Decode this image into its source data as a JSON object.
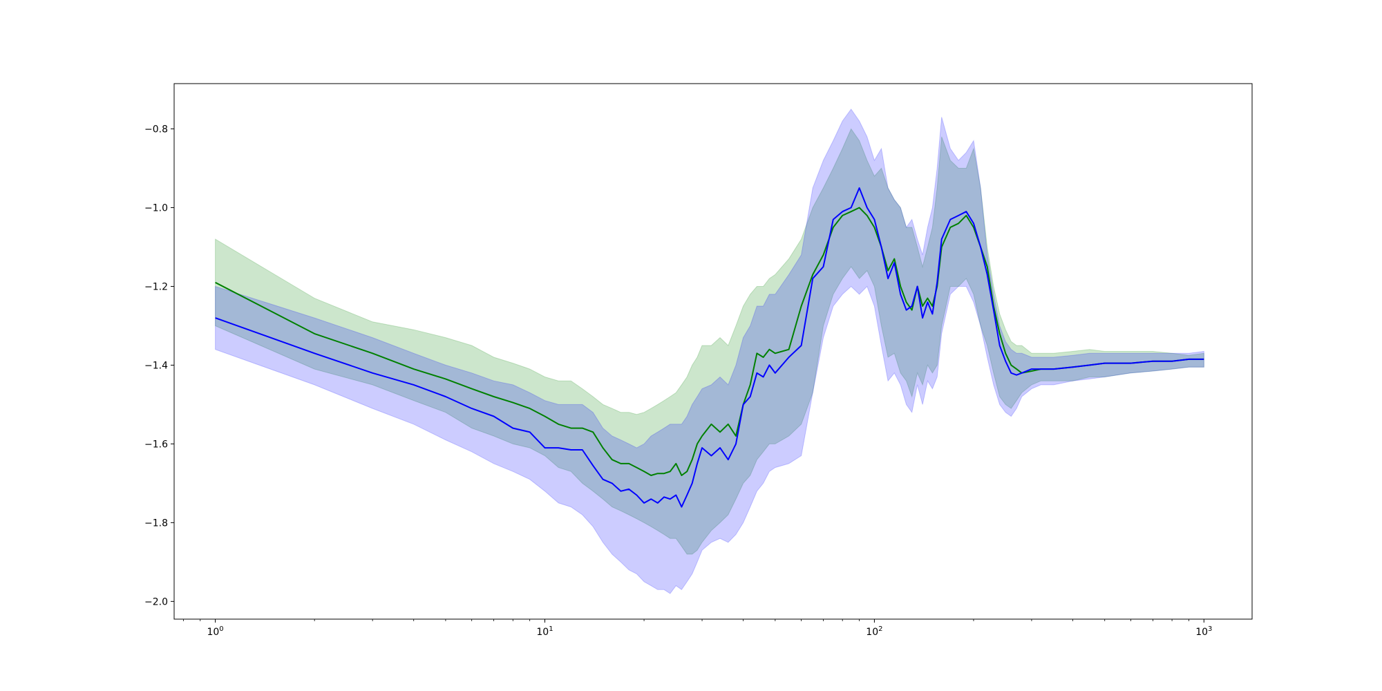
{
  "chart_data": {
    "type": "line",
    "title": "",
    "xlabel": "",
    "ylabel": "",
    "xscale": "log",
    "xlim": [
      0.75,
      1400
    ],
    "ylim": [
      -2.045,
      -0.685
    ],
    "grid": false,
    "legend": "none",
    "xticks": [
      {
        "value": 1,
        "base": "10",
        "exp": "0"
      },
      {
        "value": 10,
        "base": "10",
        "exp": "1"
      },
      {
        "value": 100,
        "base": "10",
        "exp": "2"
      },
      {
        "value": 1000,
        "base": "10",
        "exp": "3"
      }
    ],
    "yticks": [
      {
        "value": -2.0,
        "label": "−2.0"
      },
      {
        "value": -1.8,
        "label": "−1.8"
      },
      {
        "value": -1.6,
        "label": "−1.6"
      },
      {
        "value": -1.4,
        "label": "−1.4"
      },
      {
        "value": -1.2,
        "label": "−1.2"
      },
      {
        "value": -1.0,
        "label": "−1.0"
      },
      {
        "value": -0.8,
        "label": "−0.8"
      }
    ],
    "series": [
      {
        "color": "#008000",
        "band_color": "#008000",
        "band_opacity": 0.2,
        "x": [
          1,
          2,
          3,
          4,
          5,
          6,
          7,
          8,
          9,
          10,
          11,
          12,
          13,
          14,
          15,
          16,
          17,
          18,
          19,
          20,
          21,
          22,
          23,
          24,
          25,
          26,
          27,
          28,
          29,
          30,
          32,
          34,
          36,
          38,
          40,
          42,
          44,
          46,
          48,
          50,
          55,
          60,
          65,
          70,
          75,
          80,
          85,
          90,
          95,
          100,
          105,
          110,
          115,
          120,
          125,
          130,
          135,
          140,
          145,
          150,
          155,
          160,
          170,
          180,
          190,
          200,
          210,
          220,
          230,
          240,
          250,
          260,
          270,
          280,
          300,
          320,
          350,
          400,
          450,
          500,
          600,
          700,
          800,
          900,
          1000
        ],
        "mean": [
          -1.19,
          -1.32,
          -1.37,
          -1.41,
          -1.435,
          -1.46,
          -1.48,
          -1.495,
          -1.51,
          -1.53,
          -1.55,
          -1.56,
          -1.56,
          -1.57,
          -1.61,
          -1.64,
          -1.65,
          -1.65,
          -1.66,
          -1.67,
          -1.68,
          -1.675,
          -1.675,
          -1.67,
          -1.65,
          -1.68,
          -1.67,
          -1.64,
          -1.6,
          -1.58,
          -1.55,
          -1.57,
          -1.55,
          -1.58,
          -1.5,
          -1.45,
          -1.37,
          -1.38,
          -1.36,
          -1.37,
          -1.36,
          -1.25,
          -1.17,
          -1.12,
          -1.05,
          -1.02,
          -1.01,
          -1.0,
          -1.02,
          -1.05,
          -1.1,
          -1.16,
          -1.13,
          -1.2,
          -1.24,
          -1.26,
          -1.2,
          -1.25,
          -1.23,
          -1.25,
          -1.2,
          -1.1,
          -1.05,
          -1.04,
          -1.02,
          -1.05,
          -1.1,
          -1.15,
          -1.25,
          -1.32,
          -1.37,
          -1.4,
          -1.41,
          -1.42,
          -1.415,
          -1.41,
          -1.41,
          -1.405,
          -1.4,
          -1.395,
          -1.395,
          -1.39,
          -1.39,
          -1.385,
          -1.385
        ],
        "upper": [
          -1.08,
          -1.23,
          -1.29,
          -1.31,
          -1.33,
          -1.35,
          -1.38,
          -1.395,
          -1.41,
          -1.43,
          -1.44,
          -1.44,
          -1.46,
          -1.48,
          -1.5,
          -1.51,
          -1.52,
          -1.52,
          -1.525,
          -1.52,
          -1.51,
          -1.5,
          -1.49,
          -1.48,
          -1.47,
          -1.45,
          -1.43,
          -1.4,
          -1.38,
          -1.35,
          -1.35,
          -1.33,
          -1.35,
          -1.3,
          -1.25,
          -1.22,
          -1.2,
          -1.2,
          -1.18,
          -1.17,
          -1.13,
          -1.08,
          -1.0,
          -0.95,
          -0.9,
          -0.85,
          -0.8,
          -0.83,
          -0.88,
          -0.92,
          -0.9,
          -0.95,
          -0.98,
          -1.0,
          -1.05,
          -1.05,
          -1.1,
          -1.15,
          -1.1,
          -1.05,
          -0.95,
          -0.82,
          -0.88,
          -0.9,
          -0.9,
          -0.85,
          -0.95,
          -1.1,
          -1.2,
          -1.27,
          -1.31,
          -1.34,
          -1.35,
          -1.35,
          -1.37,
          -1.37,
          -1.37,
          -1.365,
          -1.36,
          -1.365,
          -1.365,
          -1.365,
          -1.37,
          -1.375,
          -1.37
        ],
        "lower": [
          -1.3,
          -1.41,
          -1.45,
          -1.49,
          -1.52,
          -1.56,
          -1.58,
          -1.6,
          -1.61,
          -1.63,
          -1.66,
          -1.67,
          -1.7,
          -1.72,
          -1.74,
          -1.76,
          -1.77,
          -1.78,
          -1.79,
          -1.8,
          -1.81,
          -1.82,
          -1.83,
          -1.84,
          -1.84,
          -1.86,
          -1.88,
          -1.88,
          -1.87,
          -1.85,
          -1.82,
          -1.8,
          -1.78,
          -1.74,
          -1.7,
          -1.68,
          -1.64,
          -1.62,
          -1.6,
          -1.6,
          -1.58,
          -1.55,
          -1.47,
          -1.3,
          -1.22,
          -1.18,
          -1.15,
          -1.18,
          -1.16,
          -1.2,
          -1.3,
          -1.38,
          -1.37,
          -1.42,
          -1.44,
          -1.48,
          -1.42,
          -1.45,
          -1.4,
          -1.42,
          -1.4,
          -1.3,
          -1.2,
          -1.2,
          -1.18,
          -1.22,
          -1.3,
          -1.35,
          -1.42,
          -1.48,
          -1.5,
          -1.51,
          -1.49,
          -1.47,
          -1.45,
          -1.44,
          -1.44,
          -1.44,
          -1.43,
          -1.43,
          -1.42,
          -1.415,
          -1.41,
          -1.405,
          -1.405
        ]
      },
      {
        "color": "#0000ff",
        "band_color": "#0000ff",
        "band_opacity": 0.2,
        "x": [
          1,
          2,
          3,
          4,
          5,
          6,
          7,
          8,
          9,
          10,
          11,
          12,
          13,
          14,
          15,
          16,
          17,
          18,
          19,
          20,
          21,
          22,
          23,
          24,
          25,
          26,
          27,
          28,
          29,
          30,
          32,
          34,
          36,
          38,
          40,
          42,
          44,
          46,
          48,
          50,
          55,
          60,
          65,
          70,
          75,
          80,
          85,
          90,
          95,
          100,
          105,
          110,
          115,
          120,
          125,
          130,
          135,
          140,
          145,
          150,
          155,
          160,
          170,
          180,
          190,
          200,
          210,
          220,
          230,
          240,
          250,
          260,
          270,
          280,
          300,
          320,
          350,
          400,
          450,
          500,
          600,
          700,
          800,
          900,
          1000
        ],
        "mean": [
          -1.28,
          -1.37,
          -1.42,
          -1.45,
          -1.48,
          -1.51,
          -1.53,
          -1.56,
          -1.57,
          -1.61,
          -1.61,
          -1.615,
          -1.615,
          -1.655,
          -1.69,
          -1.7,
          -1.72,
          -1.715,
          -1.73,
          -1.75,
          -1.74,
          -1.75,
          -1.735,
          -1.74,
          -1.73,
          -1.76,
          -1.73,
          -1.7,
          -1.65,
          -1.61,
          -1.63,
          -1.61,
          -1.64,
          -1.6,
          -1.5,
          -1.48,
          -1.42,
          -1.43,
          -1.4,
          -1.42,
          -1.38,
          -1.35,
          -1.18,
          -1.15,
          -1.03,
          -1.01,
          -1.0,
          -0.95,
          -1.0,
          -1.03,
          -1.1,
          -1.18,
          -1.14,
          -1.22,
          -1.26,
          -1.25,
          -1.2,
          -1.28,
          -1.24,
          -1.27,
          -1.19,
          -1.08,
          -1.03,
          -1.02,
          -1.01,
          -1.04,
          -1.1,
          -1.17,
          -1.26,
          -1.35,
          -1.39,
          -1.42,
          -1.425,
          -1.42,
          -1.41,
          -1.41,
          -1.41,
          -1.405,
          -1.4,
          -1.395,
          -1.395,
          -1.39,
          -1.39,
          -1.385,
          -1.385
        ],
        "upper": [
          -1.2,
          -1.28,
          -1.33,
          -1.37,
          -1.4,
          -1.42,
          -1.44,
          -1.45,
          -1.47,
          -1.49,
          -1.5,
          -1.5,
          -1.5,
          -1.52,
          -1.56,
          -1.58,
          -1.59,
          -1.6,
          -1.61,
          -1.6,
          -1.58,
          -1.57,
          -1.56,
          -1.55,
          -1.55,
          -1.55,
          -1.53,
          -1.5,
          -1.48,
          -1.46,
          -1.45,
          -1.43,
          -1.45,
          -1.4,
          -1.33,
          -1.3,
          -1.25,
          -1.25,
          -1.22,
          -1.22,
          -1.17,
          -1.12,
          -0.95,
          -0.88,
          -0.83,
          -0.78,
          -0.75,
          -0.78,
          -0.82,
          -0.88,
          -0.85,
          -0.95,
          -0.98,
          -1.0,
          -1.05,
          -1.03,
          -1.08,
          -1.12,
          -1.05,
          -1.0,
          -0.9,
          -0.77,
          -0.85,
          -0.88,
          -0.86,
          -0.83,
          -0.95,
          -1.12,
          -1.22,
          -1.3,
          -1.34,
          -1.36,
          -1.37,
          -1.37,
          -1.38,
          -1.38,
          -1.38,
          -1.375,
          -1.37,
          -1.37,
          -1.37,
          -1.37,
          -1.37,
          -1.37,
          -1.365
        ],
        "lower": [
          -1.36,
          -1.45,
          -1.51,
          -1.55,
          -1.59,
          -1.62,
          -1.65,
          -1.67,
          -1.69,
          -1.72,
          -1.75,
          -1.76,
          -1.78,
          -1.81,
          -1.85,
          -1.88,
          -1.9,
          -1.92,
          -1.93,
          -1.95,
          -1.96,
          -1.97,
          -1.97,
          -1.98,
          -1.96,
          -1.97,
          -1.95,
          -1.93,
          -1.9,
          -1.87,
          -1.85,
          -1.84,
          -1.85,
          -1.83,
          -1.8,
          -1.76,
          -1.72,
          -1.7,
          -1.67,
          -1.66,
          -1.65,
          -1.63,
          -1.47,
          -1.33,
          -1.25,
          -1.22,
          -1.2,
          -1.22,
          -1.2,
          -1.25,
          -1.35,
          -1.44,
          -1.42,
          -1.45,
          -1.5,
          -1.52,
          -1.45,
          -1.5,
          -1.44,
          -1.46,
          -1.43,
          -1.32,
          -1.22,
          -1.2,
          -1.2,
          -1.24,
          -1.3,
          -1.38,
          -1.45,
          -1.5,
          -1.52,
          -1.53,
          -1.51,
          -1.48,
          -1.46,
          -1.45,
          -1.45,
          -1.44,
          -1.435,
          -1.43,
          -1.42,
          -1.415,
          -1.41,
          -1.405,
          -1.405
        ]
      }
    ]
  }
}
